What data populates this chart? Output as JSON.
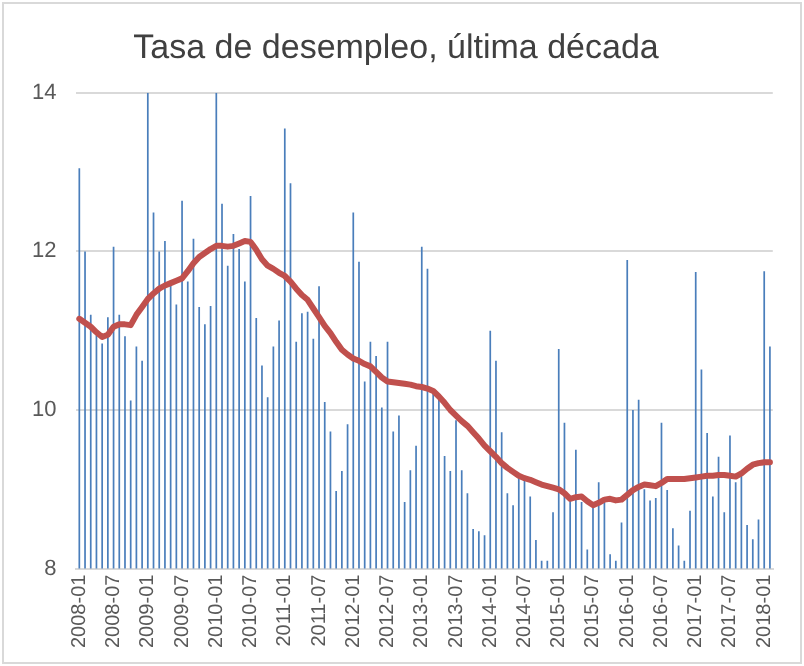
{
  "chart_data": {
    "type": "bar",
    "title": "Tasa de desempleo, última década",
    "categories": [
      "2008-01",
      null,
      null,
      null,
      null,
      null,
      "2008-07",
      null,
      null,
      null,
      null,
      null,
      "2009-01",
      null,
      null,
      null,
      null,
      null,
      "2009-07",
      null,
      null,
      null,
      null,
      null,
      "2010-01",
      null,
      null,
      null,
      null,
      null,
      "2010-07",
      null,
      null,
      null,
      null,
      null,
      "2011-01",
      null,
      null,
      null,
      null,
      null,
      "2011-07",
      null,
      null,
      null,
      null,
      null,
      "2012-01",
      null,
      null,
      null,
      null,
      null,
      "2012-07",
      null,
      null,
      null,
      null,
      null,
      "2013-01",
      null,
      null,
      null,
      null,
      null,
      "2013-07",
      null,
      null,
      null,
      null,
      null,
      "2014-01",
      null,
      null,
      null,
      null,
      null,
      "2014-07",
      null,
      null,
      null,
      null,
      null,
      "2015-01",
      null,
      null,
      null,
      null,
      null,
      "2015-07",
      null,
      null,
      null,
      null,
      null,
      "2016-01",
      null,
      null,
      null,
      null,
      null,
      "2016-07",
      null,
      null,
      null,
      null,
      null,
      "2017-01",
      null,
      null,
      null,
      null,
      null,
      "2017-07",
      null,
      null,
      null,
      null,
      null,
      "2018-01",
      null
    ],
    "series": [
      {
        "color": "#4a7ebb",
        "values": [
          13.05,
          12.0,
          11.2,
          11.0,
          10.84,
          11.17,
          12.06,
          11.2,
          10.93,
          10.12,
          10.8,
          10.62,
          14.0,
          12.49,
          12.0,
          12.13,
          11.6,
          11.33,
          12.64,
          11.62,
          12.16,
          11.3,
          11.08,
          11.31,
          14.0,
          12.6,
          11.82,
          12.22,
          12.03,
          11.62,
          12.7,
          11.16,
          10.56,
          10.16,
          10.8,
          11.13,
          13.55,
          12.86,
          10.86,
          11.22,
          11.24,
          10.9,
          11.56,
          10.1,
          9.73,
          8.98,
          9.23,
          9.82,
          12.49,
          11.87,
          10.36,
          10.86,
          10.68,
          10.03,
          10.86,
          9.73,
          9.93,
          8.84,
          9.24,
          9.55,
          12.06,
          11.78,
          10.22,
          10.16,
          9.42,
          9.23,
          9.87,
          9.24,
          8.95,
          8.5,
          8.47,
          8.42,
          11.0,
          10.62,
          9.72,
          8.95,
          8.8,
          9.2,
          9.17,
          8.91,
          8.36,
          8.1,
          8.1,
          8.71,
          10.77,
          9.84,
          8.86,
          9.5,
          8.84,
          8.24,
          8.84,
          9.09,
          8.89,
          8.18,
          8.1,
          8.58,
          11.89,
          10.0,
          10.13,
          9.0,
          8.86,
          8.89,
          9.84,
          8.99,
          8.51,
          8.29,
          8.1,
          8.73,
          11.74,
          10.51,
          9.71,
          8.91,
          9.41,
          8.71,
          9.68,
          9.09,
          9.23,
          8.55,
          8.37,
          8.62,
          11.75,
          10.8
        ]
      },
      {
        "type": "line",
        "color": "#c0504d",
        "values": [
          11.15,
          11.1,
          11.05,
          10.98,
          10.92,
          10.95,
          11.05,
          11.08,
          11.08,
          11.07,
          11.2,
          11.3,
          11.4,
          11.47,
          11.53,
          11.57,
          11.6,
          11.63,
          11.66,
          11.75,
          11.85,
          11.93,
          11.98,
          12.03,
          12.07,
          12.07,
          12.06,
          12.07,
          12.1,
          12.13,
          12.12,
          12.02,
          11.9,
          11.82,
          11.78,
          11.73,
          11.69,
          11.62,
          11.53,
          11.45,
          11.39,
          11.28,
          11.17,
          11.06,
          10.97,
          10.86,
          10.76,
          10.7,
          10.65,
          10.62,
          10.58,
          10.55,
          10.48,
          10.41,
          10.36,
          10.35,
          10.34,
          10.33,
          10.32,
          10.3,
          10.29,
          10.27,
          10.24,
          10.17,
          10.09,
          10.0,
          9.93,
          9.86,
          9.8,
          9.72,
          9.64,
          9.55,
          9.48,
          9.41,
          9.33,
          9.27,
          9.22,
          9.17,
          9.14,
          9.12,
          9.09,
          9.06,
          9.04,
          9.02,
          9.0,
          8.95,
          8.88,
          8.9,
          8.91,
          8.85,
          8.8,
          8.83,
          8.87,
          8.88,
          8.86,
          8.87,
          8.93,
          8.99,
          9.03,
          9.06,
          9.05,
          9.04,
          9.08,
          9.13,
          9.13,
          9.13,
          9.13,
          9.14,
          9.15,
          9.16,
          9.17,
          9.17,
          9.18,
          9.18,
          9.17,
          9.16,
          9.2,
          9.26,
          9.31,
          9.33,
          9.34,
          9.34
        ]
      }
    ],
    "ylim": [
      8,
      14
    ],
    "yticks": [
      8,
      10,
      12,
      14
    ],
    "grid": "y",
    "legend": false,
    "marker": "none"
  }
}
